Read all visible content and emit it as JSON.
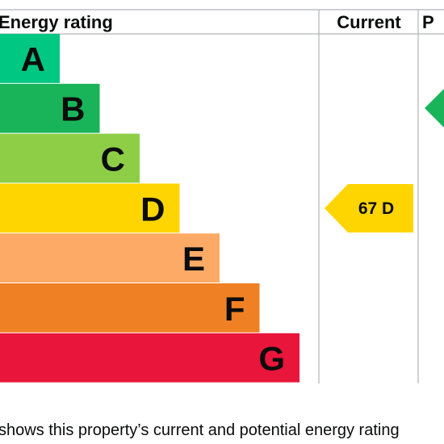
{
  "chart_data": {
    "type": "bar",
    "title": "",
    "headers": {
      "rating": "Energy rating",
      "current": "Current",
      "potential": "P"
    },
    "bands": [
      {
        "letter": "A",
        "color": "#00c781"
      },
      {
        "letter": "B",
        "color": "#19b459"
      },
      {
        "letter": "C",
        "color": "#8dce46"
      },
      {
        "letter": "D",
        "color": "#ffd500"
      },
      {
        "letter": "E",
        "color": "#fcaa65"
      },
      {
        "letter": "F",
        "color": "#ef8023"
      },
      {
        "letter": "G",
        "color": "#e9153b"
      }
    ],
    "current": {
      "score": 67,
      "band": "D",
      "label": "67  D",
      "color": "#ffd500"
    },
    "potential": {
      "band": "B",
      "color": "#19b459"
    }
  },
  "caption": "shows this property’s current and potential energy rating"
}
